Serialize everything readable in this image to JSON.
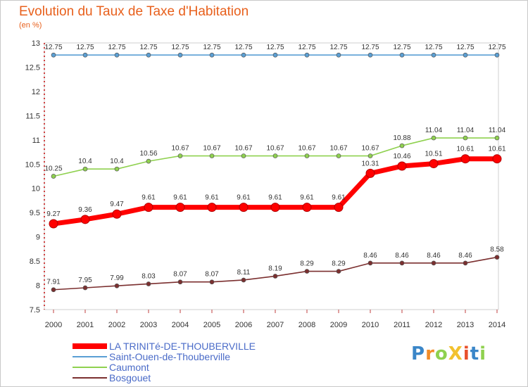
{
  "chart_data": {
    "type": "line",
    "title": "Evolution du Taux de Taxe d'Habitation",
    "unit": "(en %)",
    "ylim": [
      7.5,
      13
    ],
    "yticks": [
      "7.5",
      "8",
      "8.5",
      "9",
      "9.5",
      "10",
      "10.5",
      "11",
      "11.5",
      "12",
      "12.5",
      "13"
    ],
    "categories": [
      "2000",
      "2001",
      "2002",
      "2003",
      "2004",
      "2005",
      "2006",
      "2007",
      "2008",
      "2009",
      "2010",
      "2011",
      "2012",
      "2013",
      "2014"
    ],
    "series": [
      {
        "name": "Saint-Ouen-de-Thouberville",
        "color": "#5a9fd4",
        "weight": "thin",
        "values": [
          12.75,
          12.75,
          12.75,
          12.75,
          12.75,
          12.75,
          12.75,
          12.75,
          12.75,
          12.75,
          12.75,
          12.75,
          12.75,
          12.75,
          12.75
        ],
        "labels": [
          "12.75",
          "12.75",
          "12.75",
          "12.75",
          "12.75",
          "12.75",
          "12.75",
          "12.75",
          "12.75",
          "12.75",
          "12.75",
          "12.75",
          "12.75",
          "12.75",
          "12.75"
        ]
      },
      {
        "name": "Caumont",
        "color": "#8fd14f",
        "weight": "thin",
        "values": [
          10.25,
          10.4,
          10.4,
          10.56,
          10.67,
          10.67,
          10.67,
          10.67,
          10.67,
          10.67,
          10.67,
          10.88,
          11.04,
          11.04,
          11.04
        ],
        "labels": [
          "10.25",
          "10.4",
          "10.4",
          "10.56",
          "10.67",
          "10.67",
          "10.67",
          "10.67",
          "10.67",
          "10.67",
          "10.67",
          "10.88",
          "11.04",
          "11.04",
          "11.04"
        ]
      },
      {
        "name": "Bosgouet",
        "color": "#7b2f2f",
        "weight": "thin",
        "values": [
          7.91,
          7.95,
          7.99,
          8.03,
          8.07,
          8.07,
          8.11,
          8.19,
          8.29,
          8.29,
          8.46,
          8.46,
          8.46,
          8.46,
          8.58
        ],
        "labels": [
          "7.91",
          "7.95",
          "7.99",
          "8.03",
          "8.07",
          "8.07",
          "8.11",
          "8.19",
          "8.29",
          "8.29",
          "8.46",
          "8.46",
          "8.46",
          "8.46",
          "8.58"
        ]
      },
      {
        "name": "LA TRINITé-DE-THOUBERVILLE",
        "color": "#ff0000",
        "weight": "thick",
        "values": [
          9.27,
          9.36,
          9.47,
          9.61,
          9.61,
          9.61,
          9.61,
          9.61,
          9.61,
          9.61,
          10.31,
          10.46,
          10.51,
          10.61,
          10.61
        ],
        "labels": [
          "9.27",
          "9.36",
          "9.47",
          "9.61",
          "9.61",
          "9.61",
          "9.61",
          "9.61",
          "9.61",
          "9.61",
          "10.31",
          "10.46",
          "10.51",
          "10.61",
          "10.61"
        ]
      }
    ],
    "legend": [
      {
        "label": "LA TRINITé-DE-THOUBERVILLE",
        "color": "#ff0000",
        "weight": "thick"
      },
      {
        "label": "Saint-Ouen-de-Thouberville",
        "color": "#5a9fd4",
        "weight": "thin"
      },
      {
        "label": "Caumont",
        "color": "#8fd14f",
        "weight": "thin"
      },
      {
        "label": "Bosgouet",
        "color": "#7b2f2f",
        "weight": "thin"
      }
    ],
    "legend_position": "bottom-left"
  },
  "logo": {
    "text": "ProXiti",
    "colors": [
      "#3a86c8",
      "#f28c28",
      "#8fd14f",
      "#f2c12e",
      "#e8502c",
      "#3a86c8",
      "#8fd14f"
    ]
  }
}
